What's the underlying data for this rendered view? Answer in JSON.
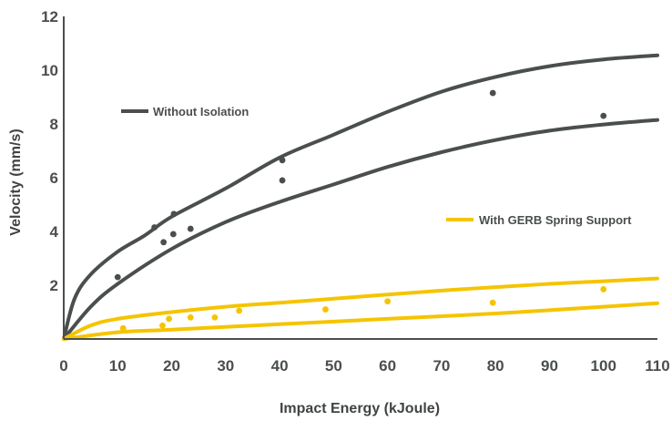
{
  "chart_data": {
    "type": "scatter",
    "xlabel": "Impact Energy (kJoule)",
    "ylabel": "Velocity (mm/s)",
    "xlim": [
      0,
      110
    ],
    "ylim": [
      0,
      12
    ],
    "xticks": [
      "0",
      "10",
      "20",
      "30",
      "40",
      "50",
      "60",
      "70",
      "80",
      "90",
      "100",
      "110"
    ],
    "yticks": [
      "2",
      "4",
      "6",
      "8",
      "10",
      "12"
    ],
    "grid": false,
    "colors": {
      "without": "#4a4f4c",
      "with": "#f5c400",
      "axis": "#4a4f4c"
    },
    "series": [
      {
        "name": "Without Isolation",
        "color": "#4a4f4c",
        "points": [
          [
            10,
            2.3
          ],
          [
            16.8,
            4.15
          ],
          [
            18.5,
            3.6
          ],
          [
            20.3,
            3.9
          ],
          [
            20.4,
            4.65
          ],
          [
            23.5,
            4.1
          ],
          [
            40.5,
            6.65
          ],
          [
            40.5,
            5.9
          ],
          [
            79.5,
            9.15
          ],
          [
            100,
            8.3
          ]
        ],
        "upper_curve": [
          [
            0,
            0
          ],
          [
            2,
            1.5
          ],
          [
            5,
            2.4
          ],
          [
            10,
            3.25
          ],
          [
            15,
            3.85
          ],
          [
            20,
            4.55
          ],
          [
            30,
            5.6
          ],
          [
            40,
            6.75
          ],
          [
            50,
            7.6
          ],
          [
            60,
            8.45
          ],
          [
            70,
            9.2
          ],
          [
            80,
            9.75
          ],
          [
            90,
            10.15
          ],
          [
            100,
            10.4
          ],
          [
            110,
            10.55
          ]
        ],
        "lower_curve": [
          [
            0,
            0
          ],
          [
            5,
            1.2
          ],
          [
            10,
            2.05
          ],
          [
            20,
            3.35
          ],
          [
            30,
            4.35
          ],
          [
            40,
            5.1
          ],
          [
            50,
            5.75
          ],
          [
            60,
            6.4
          ],
          [
            70,
            6.95
          ],
          [
            80,
            7.4
          ],
          [
            90,
            7.75
          ],
          [
            100,
            7.98
          ],
          [
            110,
            8.15
          ]
        ]
      },
      {
        "name": "With GERB Spring Support",
        "color": "#f5c400",
        "points": [
          [
            11,
            0.4
          ],
          [
            18.3,
            0.5
          ],
          [
            19.5,
            0.75
          ],
          [
            23.5,
            0.8
          ],
          [
            28,
            0.8
          ],
          [
            32.5,
            1.05
          ],
          [
            48.5,
            1.1
          ],
          [
            60,
            1.4
          ],
          [
            79.5,
            1.35
          ],
          [
            100,
            1.85
          ]
        ],
        "upper_curve": [
          [
            0,
            0
          ],
          [
            5,
            0.5
          ],
          [
            10,
            0.75
          ],
          [
            20,
            1.0
          ],
          [
            30,
            1.2
          ],
          [
            40,
            1.35
          ],
          [
            50,
            1.5
          ],
          [
            60,
            1.65
          ],
          [
            70,
            1.8
          ],
          [
            80,
            1.93
          ],
          [
            90,
            2.05
          ],
          [
            100,
            2.15
          ],
          [
            110,
            2.25
          ]
        ],
        "lower_curve": [
          [
            0,
            0
          ],
          [
            10,
            0.25
          ],
          [
            20,
            0.35
          ],
          [
            40,
            0.55
          ],
          [
            60,
            0.75
          ],
          [
            80,
            0.95
          ],
          [
            100,
            1.2
          ],
          [
            110,
            1.33
          ]
        ]
      }
    ],
    "legend": [
      {
        "label": "Without Isolation",
        "color": "#4a4f4c"
      },
      {
        "label": "With GERB Spring Support",
        "color": "#f5c400"
      }
    ]
  }
}
